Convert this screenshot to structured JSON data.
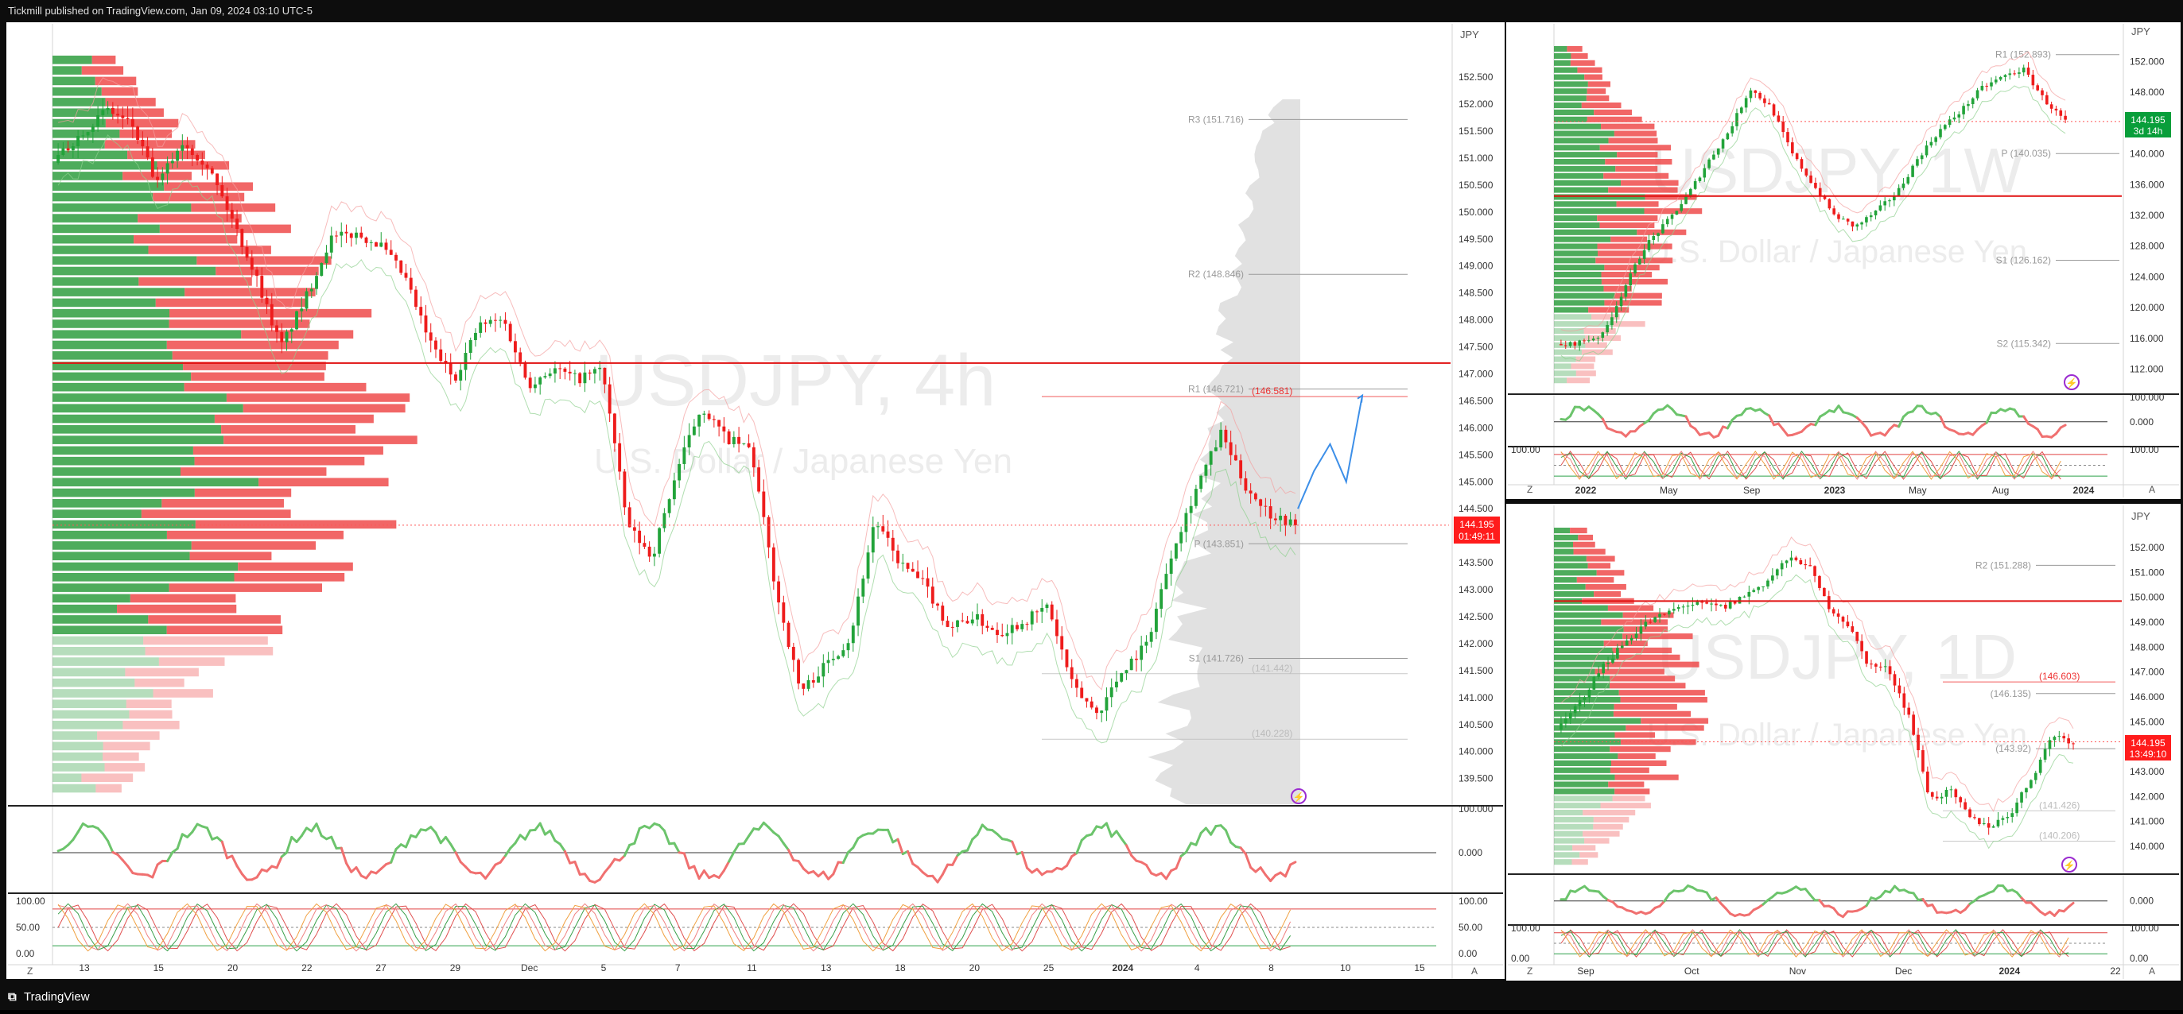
{
  "header": {
    "publish_line": "Tickmill published on TradingView.com, Jan 09, 2024 03:10 UTC-5"
  },
  "footer": {
    "brand": "TradingView",
    "brand_icon": "tradingview-logo-icon"
  },
  "colors": {
    "up": "#22a33a",
    "down": "#ee1c1c",
    "bg": "#ffffff",
    "frame": "#000000",
    "watermark": "#e6e6e6",
    "profile_up": "#2f9e3f",
    "profile_down": "#ef4b4b",
    "last_price_bg": "#ff1c1c",
    "last_price_bg_green": "#089e3a",
    "forecast": "#3d8fe8",
    "s_level": "#26a65a",
    "r_level": "#e04fe0",
    "orange_level": "#f0a030",
    "teal_level": "#22c0a0"
  },
  "panes": {
    "main": {
      "watermark_symbol": "USDJPY, 4h",
      "watermark_name": "U.S. Dollar / Japanese Yen",
      "currency": "JPY",
      "price_ticks": [
        "152.500",
        "152.000",
        "151.500",
        "151.000",
        "150.500",
        "150.000",
        "149.500",
        "149.000",
        "148.500",
        "148.000",
        "147.500",
        "147.000",
        "146.500",
        "146.000",
        "145.500",
        "145.000",
        "144.500",
        "144.000",
        "143.500",
        "143.000",
        "142.500",
        "142.000",
        "141.500",
        "141.000",
        "140.500",
        "140.000",
        "139.500"
      ],
      "last_price": "144.195",
      "countdown": "01:49:11",
      "pivots": [
        {
          "label": "R3 (151.716)",
          "price": 151.716
        },
        {
          "label": "R2 (148.846)",
          "price": 148.846
        },
        {
          "label": "R1 (146.721)",
          "price": 146.721
        },
        {
          "label": "P (143.851)",
          "price": 143.851
        },
        {
          "label": "S1 (141.726)",
          "price": 141.726
        }
      ],
      "extra_levels": [
        {
          "label": "(146.581)",
          "price": 146.581,
          "color": "#ee3333"
        },
        {
          "label": "(141.442)",
          "price": 141.442,
          "color": "#bbbbbb"
        },
        {
          "label": "(140.228)",
          "price": 140.228,
          "color": "#bbbbbb"
        }
      ],
      "osc_ticks": [
        "100.000",
        "0.000"
      ],
      "stoch_ticks": [
        "100.00",
        "50.00",
        "0.00"
      ],
      "time_ticks": [
        "13",
        "15",
        "20",
        "22",
        "27",
        "29",
        "Dec",
        "5",
        "7",
        "11",
        "13",
        "18",
        "20",
        "25",
        "2024",
        "4",
        "8",
        "10",
        "15"
      ],
      "axis_z": "Z",
      "axis_a": "A"
    },
    "weekly": {
      "watermark_symbol": "USDJPY, 1W",
      "watermark_name": "U.S. Dollar / Japanese Yen",
      "currency": "JPY",
      "price_ticks": [
        "152.000",
        "148.000",
        "144.000",
        "140.000",
        "136.000",
        "132.000",
        "128.000",
        "124.000",
        "120.000",
        "116.000",
        "112.000"
      ],
      "last_price": "144.195",
      "countdown": "3d 14h",
      "pivots": [
        {
          "label": "R1 (152.893)",
          "price": 152.893
        },
        {
          "label": "P (140.035)",
          "price": 140.035
        },
        {
          "label": "S1 (126.162)",
          "price": 126.162
        },
        {
          "label": "S2 (115.342)",
          "price": 115.342
        }
      ],
      "osc_ticks": [
        "100.000",
        "0.000"
      ],
      "stoch_ticks": [
        "100.00"
      ],
      "time_ticks": [
        "2022",
        "May",
        "Sep",
        "2023",
        "May",
        "Aug",
        "2024"
      ],
      "axis_z": "Z",
      "axis_a": "A"
    },
    "daily": {
      "watermark_symbol": "USDJPY, 1D",
      "watermark_name": "U.S. Dollar / Japanese Yen",
      "currency": "JPY",
      "price_ticks": [
        "152.000",
        "151.000",
        "150.000",
        "149.000",
        "148.000",
        "147.000",
        "146.000",
        "145.000",
        "144.000",
        "143.000",
        "142.000",
        "141.000",
        "140.000"
      ],
      "last_price": "144.195",
      "countdown": "13:49:10",
      "pivots": [
        {
          "label": "R2 (151.288)",
          "price": 151.288
        },
        {
          "label": "(146.135)",
          "price": 146.135
        },
        {
          "label": "(143.92)",
          "price": 143.92
        }
      ],
      "extra_levels": [
        {
          "label": "(146.603)",
          "price": 146.603,
          "color": "#ee3333"
        },
        {
          "label": "(141.426)",
          "price": 141.426,
          "color": "#bbbbbb"
        },
        {
          "label": "(140.206)",
          "price": 140.206,
          "color": "#bbbbbb"
        }
      ],
      "osc_ticks": [
        "0.000"
      ],
      "stoch_ticks": [
        "100.00",
        "0.00"
      ],
      "time_ticks": [
        "Sep",
        "Oct",
        "Nov",
        "Dec",
        "2024",
        "22"
      ],
      "axis_z": "Z",
      "axis_a": "A"
    }
  },
  "chart_data": [
    {
      "type": "candlestick",
      "title": "USDJPY, 4h",
      "subtitle": "U.S. Dollar / Japanese Yen",
      "y_unit": "JPY",
      "ylim": [
        139.2,
        152.9
      ],
      "x_ticks": [
        "13",
        "15",
        "20",
        "22",
        "27",
        "29",
        "Dec",
        "5",
        "7",
        "11",
        "13",
        "18",
        "20",
        "25",
        "2024",
        "4",
        "8",
        "10",
        "15"
      ],
      "close_path": [
        151.0,
        151.5,
        151.9,
        151.6,
        150.5,
        151.3,
        150.9,
        149.9,
        148.8,
        147.5,
        148.4,
        149.5,
        149.6,
        149.4,
        148.8,
        147.6,
        146.9,
        147.9,
        148.0,
        146.8,
        147.1,
        146.9,
        147.1,
        144.2,
        143.6,
        145.2,
        146.4,
        145.8,
        145.6,
        143.0,
        141.1,
        141.6,
        142.1,
        144.3,
        143.5,
        143.1,
        142.3,
        142.5,
        142.2,
        142.4,
        142.7,
        141.2,
        140.7,
        141.5,
        142.0,
        143.7,
        144.9,
        145.9,
        144.9,
        144.4,
        144.195
      ],
      "last_price": 144.195,
      "forecast_path": [
        144.5,
        145.2,
        145.7,
        145.0,
        146.6
      ],
      "pivot_levels": [
        151.716,
        148.846,
        146.721,
        143.851,
        141.726
      ]
    },
    {
      "type": "candlestick",
      "title": "USDJPY, 1W",
      "subtitle": "U.S. Dollar / Japanese Yen",
      "y_unit": "JPY",
      "ylim": [
        110,
        154
      ],
      "x_ticks": [
        "2022",
        "May",
        "Sep",
        "2023",
        "May",
        "Aug",
        "2024"
      ],
      "close_path": [
        115.0,
        115.6,
        116.5,
        122.5,
        128.0,
        131.0,
        134.5,
        139.0,
        143.0,
        148.5,
        146.0,
        140.0,
        136.0,
        132.0,
        130.5,
        132.5,
        135.0,
        139.5,
        143.0,
        145.5,
        148.5,
        150.0,
        151.0,
        147.0,
        144.195
      ],
      "last_price": 144.195,
      "pivot_levels": [
        152.893,
        140.035,
        126.162,
        115.342
      ]
    },
    {
      "type": "candlestick",
      "title": "USDJPY, 1D",
      "subtitle": "U.S. Dollar / Japanese Yen",
      "y_unit": "JPY",
      "ylim": [
        139.2,
        152.8
      ],
      "x_ticks": [
        "Sep",
        "Oct",
        "Nov",
        "Dec",
        "2024",
        "22"
      ],
      "close_path": [
        144.8,
        145.9,
        147.2,
        148.1,
        148.9,
        149.3,
        149.7,
        149.7,
        149.6,
        150.1,
        150.6,
        151.5,
        151.4,
        149.7,
        148.9,
        147.3,
        147.1,
        145.2,
        141.9,
        142.2,
        141.1,
        140.8,
        141.4,
        142.8,
        144.5,
        144.195
      ],
      "last_price": 144.195,
      "pivot_levels": [
        151.288,
        146.135,
        143.92
      ]
    }
  ]
}
